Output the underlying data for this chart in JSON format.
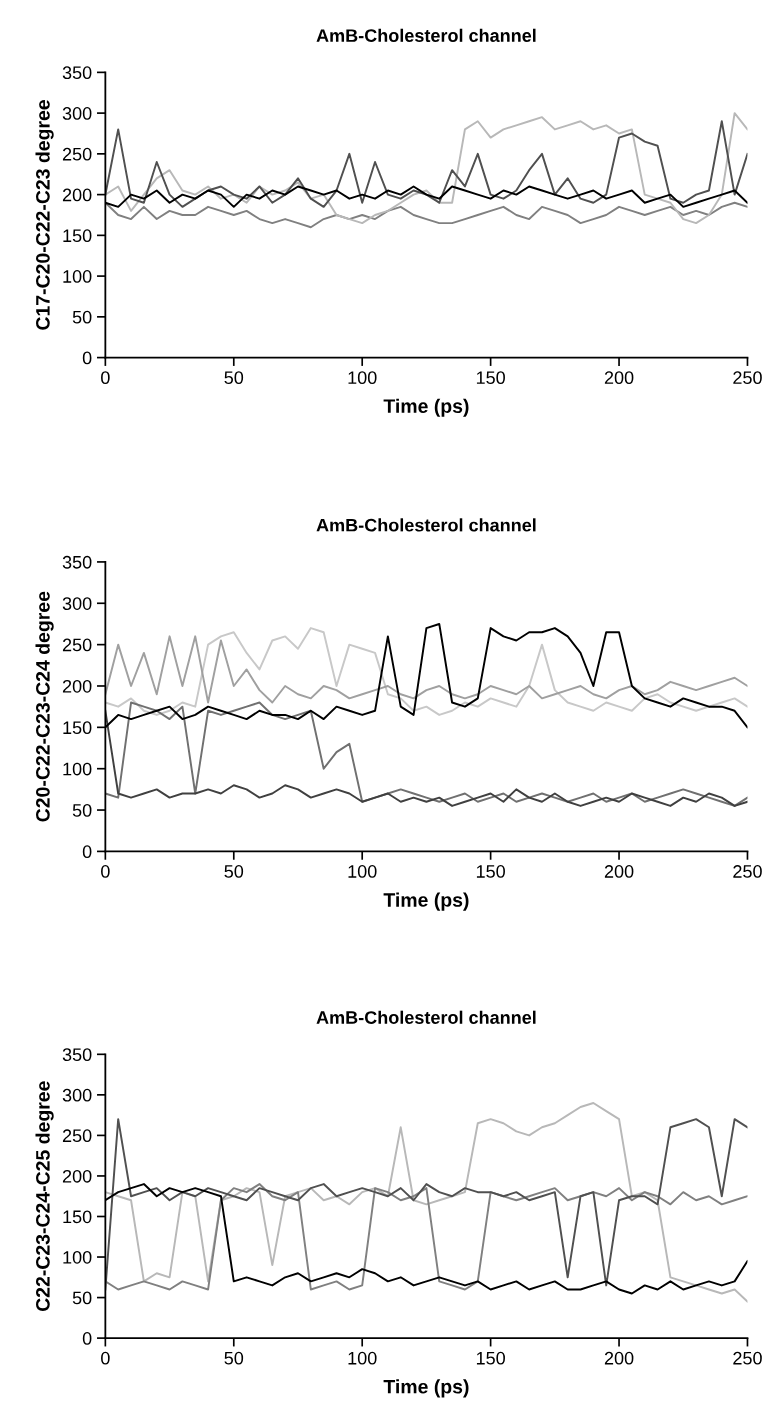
{
  "chart_data": [
    {
      "type": "line",
      "title": "AmB-Cholesterol channel",
      "xlabel": "Time (ps)",
      "ylabel": "C17-C20-C22-C23 degree",
      "xlim": [
        0,
        250
      ],
      "ylim": [
        0,
        350
      ],
      "xticks": [
        0,
        50,
        100,
        150,
        200,
        250
      ],
      "yticks": [
        0,
        50,
        100,
        150,
        200,
        250,
        300,
        350
      ],
      "grid": false,
      "legend": false,
      "x": [
        0,
        5,
        10,
        15,
        20,
        25,
        30,
        35,
        40,
        45,
        50,
        55,
        60,
        65,
        70,
        75,
        80,
        85,
        90,
        95,
        100,
        105,
        110,
        115,
        120,
        125,
        130,
        135,
        140,
        145,
        150,
        155,
        160,
        165,
        170,
        175,
        180,
        185,
        190,
        195,
        200,
        205,
        210,
        215,
        220,
        225,
        230,
        235,
        240,
        245,
        250
      ],
      "series": [
        {
          "color": "#808080",
          "values": [
            190,
            175,
            170,
            185,
            170,
            180,
            175,
            175,
            185,
            180,
            175,
            180,
            170,
            165,
            170,
            165,
            160,
            170,
            175,
            170,
            175,
            170,
            180,
            185,
            175,
            170,
            165,
            165,
            170,
            175,
            180,
            185,
            175,
            170,
            185,
            180,
            175,
            165,
            170,
            175,
            185,
            180,
            175,
            180,
            185,
            175,
            180,
            175,
            185,
            190,
            185
          ]
        },
        {
          "color": "#b8b8b8",
          "values": [
            200,
            210,
            180,
            200,
            220,
            230,
            205,
            200,
            210,
            195,
            200,
            190,
            210,
            200,
            205,
            215,
            195,
            200,
            175,
            170,
            165,
            175,
            180,
            190,
            200,
            205,
            190,
            190,
            280,
            290,
            270,
            280,
            285,
            290,
            295,
            280,
            285,
            290,
            280,
            285,
            275,
            280,
            200,
            195,
            190,
            170,
            165,
            175,
            200,
            300,
            280
          ]
        },
        {
          "color": "#505050",
          "values": [
            200,
            280,
            195,
            190,
            240,
            200,
            185,
            195,
            205,
            210,
            200,
            195,
            210,
            190,
            200,
            220,
            195,
            185,
            205,
            250,
            190,
            240,
            200,
            195,
            205,
            200,
            190,
            230,
            210,
            250,
            200,
            195,
            205,
            230,
            250,
            200,
            220,
            195,
            190,
            200,
            270,
            275,
            265,
            260,
            195,
            190,
            200,
            205,
            290,
            200,
            250
          ]
        },
        {
          "color": "#000000",
          "values": [
            190,
            185,
            200,
            195,
            205,
            190,
            200,
            195,
            205,
            200,
            185,
            200,
            195,
            205,
            200,
            210,
            205,
            200,
            205,
            195,
            200,
            195,
            205,
            200,
            210,
            200,
            195,
            210,
            205,
            200,
            195,
            205,
            200,
            210,
            205,
            200,
            195,
            200,
            205,
            195,
            200,
            205,
            190,
            195,
            200,
            185,
            190,
            195,
            200,
            205,
            190
          ]
        }
      ]
    },
    {
      "type": "line",
      "title": "AmB-Cholesterol channel",
      "xlabel": "Time (ps)",
      "ylabel": "C20-C22-C23-C24 degree",
      "xlim": [
        0,
        250
      ],
      "ylim": [
        0,
        350
      ],
      "xticks": [
        0,
        50,
        100,
        150,
        200,
        250
      ],
      "yticks": [
        0,
        50,
        100,
        150,
        200,
        250,
        300,
        350
      ],
      "grid": false,
      "legend": false,
      "x": [
        0,
        5,
        10,
        15,
        20,
        25,
        30,
        35,
        40,
        45,
        50,
        55,
        60,
        65,
        70,
        75,
        80,
        85,
        90,
        95,
        100,
        105,
        110,
        115,
        120,
        125,
        130,
        135,
        140,
        145,
        150,
        155,
        160,
        165,
        170,
        175,
        180,
        185,
        190,
        195,
        200,
        205,
        210,
        215,
        220,
        225,
        230,
        235,
        240,
        245,
        250
      ],
      "series": [
        {
          "color": "#c8c8c8",
          "values": [
            180,
            175,
            185,
            170,
            165,
            170,
            180,
            175,
            250,
            260,
            265,
            240,
            220,
            255,
            260,
            245,
            270,
            265,
            200,
            250,
            245,
            240,
            190,
            185,
            170,
            175,
            165,
            170,
            180,
            175,
            185,
            180,
            175,
            200,
            250,
            195,
            180,
            175,
            170,
            180,
            175,
            170,
            185,
            190,
            180,
            175,
            170,
            175,
            180,
            185,
            175
          ]
        },
        {
          "color": "#a0a0a0",
          "values": [
            190,
            250,
            200,
            240,
            190,
            260,
            200,
            260,
            180,
            255,
            200,
            220,
            195,
            180,
            200,
            190,
            185,
            200,
            195,
            185,
            190,
            195,
            200,
            190,
            185,
            195,
            200,
            190,
            185,
            190,
            200,
            195,
            190,
            200,
            185,
            190,
            195,
            200,
            190,
            185,
            195,
            200,
            190,
            195,
            205,
            200,
            195,
            200,
            205,
            210,
            200
          ]
        },
        {
          "color": "#707070",
          "values": [
            70,
            65,
            180,
            175,
            170,
            160,
            175,
            70,
            170,
            165,
            170,
            175,
            180,
            165,
            160,
            165,
            170,
            100,
            120,
            130,
            60,
            65,
            70,
            75,
            70,
            65,
            60,
            65,
            70,
            60,
            65,
            70,
            60,
            65,
            70,
            65,
            60,
            65,
            70,
            60,
            65,
            70,
            60,
            65,
            70,
            75,
            70,
            65,
            60,
            55,
            65
          ]
        },
        {
          "color": "#404040",
          "values": [
            170,
            70,
            65,
            70,
            75,
            65,
            70,
            70,
            75,
            70,
            80,
            75,
            65,
            70,
            80,
            75,
            65,
            70,
            75,
            70,
            60,
            65,
            70,
            60,
            65,
            60,
            65,
            55,
            60,
            65,
            70,
            60,
            75,
            65,
            60,
            70,
            60,
            55,
            60,
            65,
            60,
            70,
            65,
            60,
            55,
            65,
            60,
            70,
            65,
            55,
            60
          ]
        },
        {
          "color": "#000000",
          "values": [
            150,
            165,
            160,
            165,
            170,
            175,
            160,
            165,
            175,
            170,
            165,
            160,
            170,
            165,
            165,
            160,
            170,
            160,
            175,
            170,
            165,
            170,
            260,
            175,
            165,
            270,
            275,
            180,
            175,
            185,
            270,
            260,
            255,
            265,
            265,
            270,
            260,
            240,
            200,
            265,
            265,
            200,
            185,
            180,
            175,
            185,
            180,
            175,
            175,
            170,
            150
          ]
        }
      ]
    },
    {
      "type": "line",
      "title": "AmB-Cholesterol channel",
      "xlabel": "Time (ps)",
      "ylabel": "C22-C23-C24-C25 degree",
      "xlim": [
        0,
        250
      ],
      "ylim": [
        0,
        350
      ],
      "xticks": [
        0,
        50,
        100,
        150,
        200,
        250
      ],
      "yticks": [
        0,
        50,
        100,
        150,
        200,
        250,
        300,
        350
      ],
      "grid": false,
      "legend": false,
      "x": [
        0,
        5,
        10,
        15,
        20,
        25,
        30,
        35,
        40,
        45,
        50,
        55,
        60,
        65,
        70,
        75,
        80,
        85,
        90,
        95,
        100,
        105,
        110,
        115,
        120,
        125,
        130,
        135,
        140,
        145,
        150,
        155,
        160,
        165,
        170,
        175,
        180,
        185,
        190,
        195,
        200,
        205,
        210,
        215,
        220,
        225,
        230,
        235,
        240,
        245,
        250
      ],
      "series": [
        {
          "color": "#b8b8b8",
          "values": [
            180,
            175,
            170,
            70,
            80,
            75,
            180,
            175,
            70,
            170,
            175,
            185,
            180,
            90,
            175,
            180,
            185,
            170,
            175,
            165,
            180,
            185,
            175,
            260,
            170,
            165,
            170,
            175,
            180,
            265,
            270,
            265,
            255,
            250,
            260,
            265,
            275,
            285,
            290,
            280,
            270,
            175,
            180,
            170,
            75,
            70,
            65,
            60,
            55,
            60,
            45
          ]
        },
        {
          "color": "#808080",
          "values": [
            70,
            60,
            65,
            70,
            65,
            60,
            70,
            65,
            60,
            170,
            185,
            180,
            190,
            175,
            170,
            180,
            60,
            65,
            70,
            60,
            65,
            185,
            180,
            170,
            175,
            185,
            70,
            65,
            60,
            70,
            180,
            175,
            170,
            175,
            180,
            185,
            170,
            175,
            180,
            175,
            185,
            170,
            180,
            175,
            165,
            180,
            170,
            175,
            165,
            170,
            175
          ]
        },
        {
          "color": "#505050",
          "values": [
            60,
            270,
            175,
            180,
            185,
            170,
            180,
            175,
            185,
            180,
            175,
            170,
            185,
            180,
            175,
            170,
            185,
            190,
            175,
            180,
            185,
            180,
            175,
            185,
            170,
            190,
            180,
            175,
            185,
            180,
            180,
            175,
            180,
            170,
            175,
            180,
            75,
            175,
            180,
            65,
            170,
            175,
            175,
            165,
            260,
            265,
            270,
            260,
            175,
            270,
            260
          ]
        },
        {
          "color": "#000000",
          "values": [
            170,
            180,
            185,
            190,
            175,
            185,
            180,
            185,
            180,
            175,
            70,
            75,
            70,
            65,
            75,
            80,
            70,
            75,
            80,
            75,
            85,
            80,
            70,
            75,
            65,
            70,
            75,
            70,
            65,
            70,
            60,
            65,
            70,
            60,
            65,
            70,
            60,
            60,
            65,
            70,
            60,
            55,
            65,
            60,
            70,
            60,
            65,
            70,
            65,
            70,
            95
          ]
        }
      ]
    }
  ]
}
